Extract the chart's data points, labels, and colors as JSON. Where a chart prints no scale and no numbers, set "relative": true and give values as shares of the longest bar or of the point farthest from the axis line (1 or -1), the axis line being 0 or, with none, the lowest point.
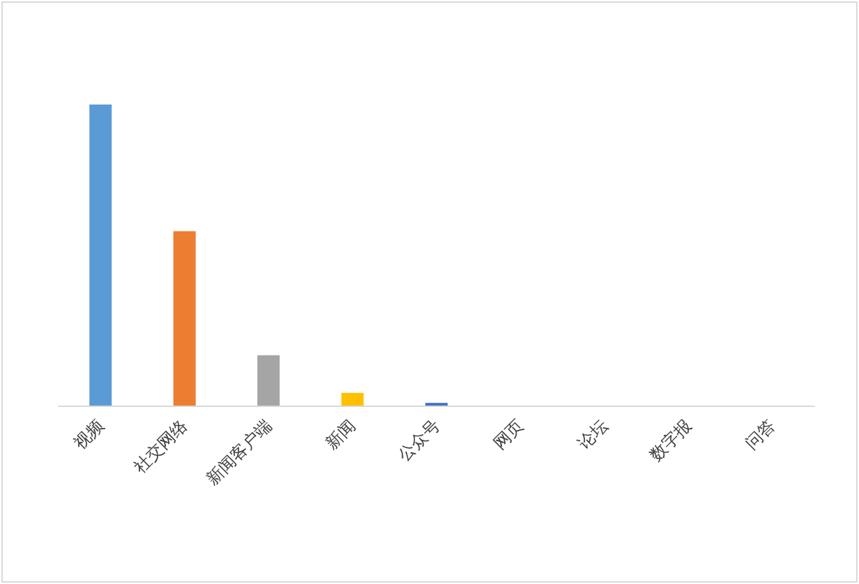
{
  "chart_data": {
    "type": "bar",
    "relative": true,
    "categories": [
      "视频",
      "社交网络",
      "新闻客户端",
      "新闻",
      "公众号",
      "网页",
      "论坛",
      "数字报",
      "问答"
    ],
    "values": [
      1,
      0.579,
      0.167,
      0.042,
      0.009,
      0,
      0,
      0,
      0
    ],
    "colors": [
      "#5b9bd5",
      "#ed7d31",
      "#a5a5a5",
      "#ffc000",
      "#4472c4",
      "#70ad47",
      "#264478",
      "#9e480e",
      "#636363"
    ]
  }
}
